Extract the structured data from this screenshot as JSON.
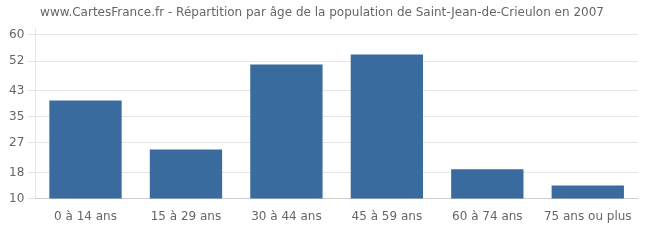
{
  "chart_data": {
    "type": "bar",
    "title": "www.CartesFrance.fr - Répartition par âge de la population de Saint-Jean-de-Crieulon en 2007",
    "categories": [
      "0 à 14 ans",
      "15 à 29 ans",
      "30 à 44 ans",
      "45 à 59 ans",
      "60 à 74 ans",
      "75 ans ou plus"
    ],
    "values": [
      40,
      25,
      51,
      54,
      19,
      14
    ],
    "color": "#3a6b9e",
    "ylim": [
      10,
      62
    ],
    "yticks": [
      10,
      18,
      27,
      35,
      43,
      52,
      60
    ],
    "grid": true
  }
}
